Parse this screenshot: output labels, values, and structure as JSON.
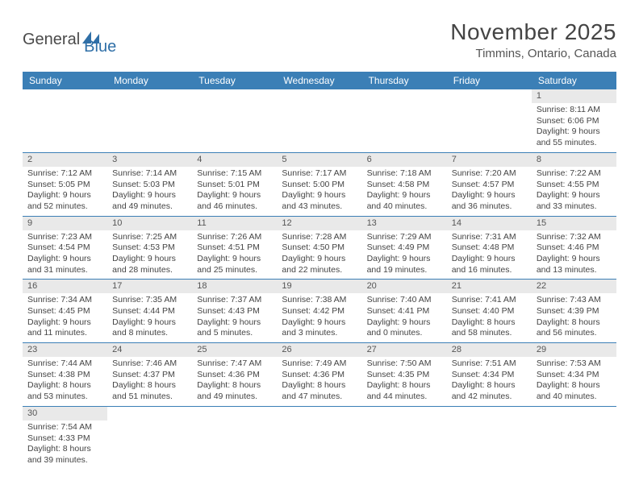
{
  "logo": {
    "text1": "General",
    "text2": "Blue"
  },
  "title": "November 2025",
  "location": "Timmins, Ontario, Canada",
  "colors": {
    "header_bg": "#3b7fb6",
    "header_fg": "#ffffff",
    "daynum_bg": "#e9e9e9",
    "rule": "#3b7fb6",
    "logo_blue": "#2f6fa7"
  },
  "weekdays": [
    "Sunday",
    "Monday",
    "Tuesday",
    "Wednesday",
    "Thursday",
    "Friday",
    "Saturday"
  ],
  "weeks": [
    [
      null,
      null,
      null,
      null,
      null,
      null,
      {
        "n": "1",
        "sr": "Sunrise: 8:11 AM",
        "ss": "Sunset: 6:06 PM",
        "dl1": "Daylight: 9 hours",
        "dl2": "and 55 minutes."
      }
    ],
    [
      {
        "n": "2",
        "sr": "Sunrise: 7:12 AM",
        "ss": "Sunset: 5:05 PM",
        "dl1": "Daylight: 9 hours",
        "dl2": "and 52 minutes."
      },
      {
        "n": "3",
        "sr": "Sunrise: 7:14 AM",
        "ss": "Sunset: 5:03 PM",
        "dl1": "Daylight: 9 hours",
        "dl2": "and 49 minutes."
      },
      {
        "n": "4",
        "sr": "Sunrise: 7:15 AM",
        "ss": "Sunset: 5:01 PM",
        "dl1": "Daylight: 9 hours",
        "dl2": "and 46 minutes."
      },
      {
        "n": "5",
        "sr": "Sunrise: 7:17 AM",
        "ss": "Sunset: 5:00 PM",
        "dl1": "Daylight: 9 hours",
        "dl2": "and 43 minutes."
      },
      {
        "n": "6",
        "sr": "Sunrise: 7:18 AM",
        "ss": "Sunset: 4:58 PM",
        "dl1": "Daylight: 9 hours",
        "dl2": "and 40 minutes."
      },
      {
        "n": "7",
        "sr": "Sunrise: 7:20 AM",
        "ss": "Sunset: 4:57 PM",
        "dl1": "Daylight: 9 hours",
        "dl2": "and 36 minutes."
      },
      {
        "n": "8",
        "sr": "Sunrise: 7:22 AM",
        "ss": "Sunset: 4:55 PM",
        "dl1": "Daylight: 9 hours",
        "dl2": "and 33 minutes."
      }
    ],
    [
      {
        "n": "9",
        "sr": "Sunrise: 7:23 AM",
        "ss": "Sunset: 4:54 PM",
        "dl1": "Daylight: 9 hours",
        "dl2": "and 31 minutes."
      },
      {
        "n": "10",
        "sr": "Sunrise: 7:25 AM",
        "ss": "Sunset: 4:53 PM",
        "dl1": "Daylight: 9 hours",
        "dl2": "and 28 minutes."
      },
      {
        "n": "11",
        "sr": "Sunrise: 7:26 AM",
        "ss": "Sunset: 4:51 PM",
        "dl1": "Daylight: 9 hours",
        "dl2": "and 25 minutes."
      },
      {
        "n": "12",
        "sr": "Sunrise: 7:28 AM",
        "ss": "Sunset: 4:50 PM",
        "dl1": "Daylight: 9 hours",
        "dl2": "and 22 minutes."
      },
      {
        "n": "13",
        "sr": "Sunrise: 7:29 AM",
        "ss": "Sunset: 4:49 PM",
        "dl1": "Daylight: 9 hours",
        "dl2": "and 19 minutes."
      },
      {
        "n": "14",
        "sr": "Sunrise: 7:31 AM",
        "ss": "Sunset: 4:48 PM",
        "dl1": "Daylight: 9 hours",
        "dl2": "and 16 minutes."
      },
      {
        "n": "15",
        "sr": "Sunrise: 7:32 AM",
        "ss": "Sunset: 4:46 PM",
        "dl1": "Daylight: 9 hours",
        "dl2": "and 13 minutes."
      }
    ],
    [
      {
        "n": "16",
        "sr": "Sunrise: 7:34 AM",
        "ss": "Sunset: 4:45 PM",
        "dl1": "Daylight: 9 hours",
        "dl2": "and 11 minutes."
      },
      {
        "n": "17",
        "sr": "Sunrise: 7:35 AM",
        "ss": "Sunset: 4:44 PM",
        "dl1": "Daylight: 9 hours",
        "dl2": "and 8 minutes."
      },
      {
        "n": "18",
        "sr": "Sunrise: 7:37 AM",
        "ss": "Sunset: 4:43 PM",
        "dl1": "Daylight: 9 hours",
        "dl2": "and 5 minutes."
      },
      {
        "n": "19",
        "sr": "Sunrise: 7:38 AM",
        "ss": "Sunset: 4:42 PM",
        "dl1": "Daylight: 9 hours",
        "dl2": "and 3 minutes."
      },
      {
        "n": "20",
        "sr": "Sunrise: 7:40 AM",
        "ss": "Sunset: 4:41 PM",
        "dl1": "Daylight: 9 hours",
        "dl2": "and 0 minutes."
      },
      {
        "n": "21",
        "sr": "Sunrise: 7:41 AM",
        "ss": "Sunset: 4:40 PM",
        "dl1": "Daylight: 8 hours",
        "dl2": "and 58 minutes."
      },
      {
        "n": "22",
        "sr": "Sunrise: 7:43 AM",
        "ss": "Sunset: 4:39 PM",
        "dl1": "Daylight: 8 hours",
        "dl2": "and 56 minutes."
      }
    ],
    [
      {
        "n": "23",
        "sr": "Sunrise: 7:44 AM",
        "ss": "Sunset: 4:38 PM",
        "dl1": "Daylight: 8 hours",
        "dl2": "and 53 minutes."
      },
      {
        "n": "24",
        "sr": "Sunrise: 7:46 AM",
        "ss": "Sunset: 4:37 PM",
        "dl1": "Daylight: 8 hours",
        "dl2": "and 51 minutes."
      },
      {
        "n": "25",
        "sr": "Sunrise: 7:47 AM",
        "ss": "Sunset: 4:36 PM",
        "dl1": "Daylight: 8 hours",
        "dl2": "and 49 minutes."
      },
      {
        "n": "26",
        "sr": "Sunrise: 7:49 AM",
        "ss": "Sunset: 4:36 PM",
        "dl1": "Daylight: 8 hours",
        "dl2": "and 47 minutes."
      },
      {
        "n": "27",
        "sr": "Sunrise: 7:50 AM",
        "ss": "Sunset: 4:35 PM",
        "dl1": "Daylight: 8 hours",
        "dl2": "and 44 minutes."
      },
      {
        "n": "28",
        "sr": "Sunrise: 7:51 AM",
        "ss": "Sunset: 4:34 PM",
        "dl1": "Daylight: 8 hours",
        "dl2": "and 42 minutes."
      },
      {
        "n": "29",
        "sr": "Sunrise: 7:53 AM",
        "ss": "Sunset: 4:34 PM",
        "dl1": "Daylight: 8 hours",
        "dl2": "and 40 minutes."
      }
    ],
    [
      {
        "n": "30",
        "sr": "Sunrise: 7:54 AM",
        "ss": "Sunset: 4:33 PM",
        "dl1": "Daylight: 8 hours",
        "dl2": "and 39 minutes."
      },
      null,
      null,
      null,
      null,
      null,
      null
    ]
  ]
}
